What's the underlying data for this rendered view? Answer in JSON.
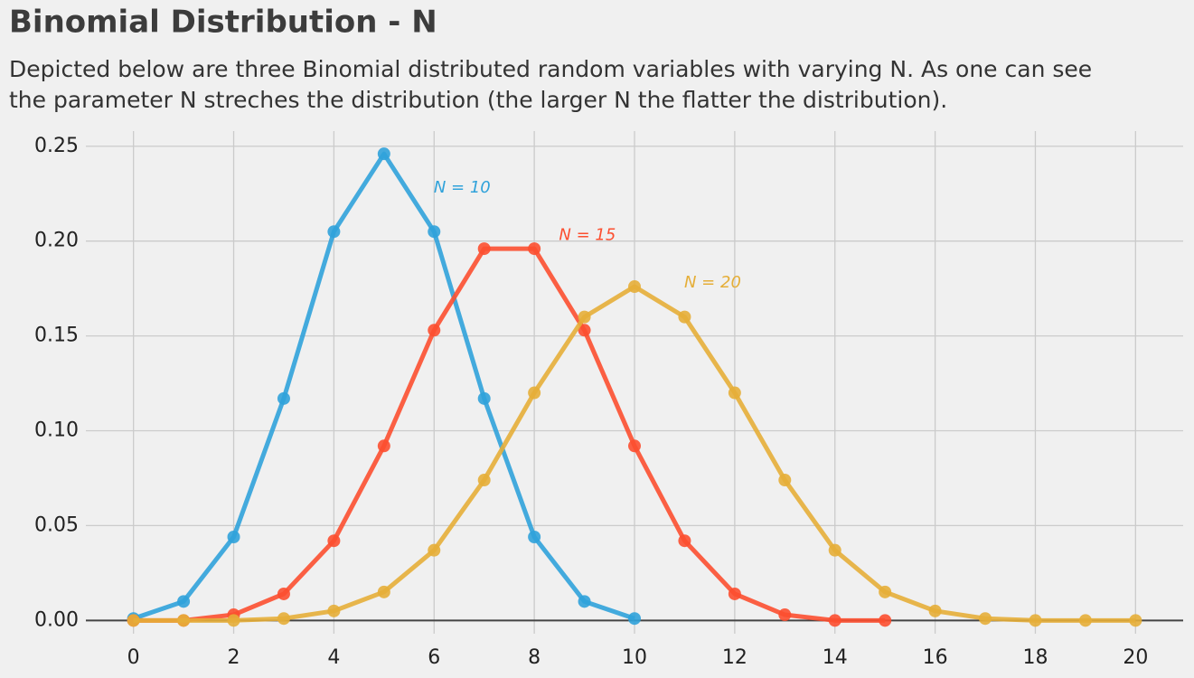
{
  "chart_data": {
    "type": "line",
    "title": "Binomial Distribution - N",
    "subtitle": [
      "Depicted below are three Binomial distributed random variables with varying N. As one can see",
      "the parameter N streches the distribution (the larger N the flatter the distribution)."
    ],
    "series": [
      {
        "name": "N = 10",
        "color": "#30a2da",
        "x": [
          0,
          1,
          2,
          3,
          4,
          5,
          6,
          7,
          8,
          9,
          10
        ],
        "values": [
          0.001,
          0.01,
          0.044,
          0.117,
          0.205,
          0.246,
          0.205,
          0.117,
          0.044,
          0.01,
          0.001
        ]
      },
      {
        "name": "N = 15",
        "color": "#fc4f30",
        "x": [
          0,
          1,
          2,
          3,
          4,
          5,
          6,
          7,
          8,
          9,
          10,
          11,
          12,
          13,
          14,
          15
        ],
        "values": [
          0.0,
          0.0,
          0.003,
          0.014,
          0.042,
          0.092,
          0.153,
          0.196,
          0.196,
          0.153,
          0.092,
          0.042,
          0.014,
          0.003,
          0.0,
          0.0
        ]
      },
      {
        "name": "N = 20",
        "color": "#e5ae38",
        "x": [
          0,
          1,
          2,
          3,
          4,
          5,
          6,
          7,
          8,
          9,
          10,
          11,
          12,
          13,
          14,
          15,
          16,
          17,
          18,
          19,
          20
        ],
        "values": [
          0.0,
          0.0,
          0.0,
          0.001,
          0.005,
          0.015,
          0.037,
          0.074,
          0.12,
          0.16,
          0.176,
          0.16,
          0.12,
          0.074,
          0.037,
          0.015,
          0.005,
          0.001,
          0.0,
          0.0,
          0.0
        ]
      }
    ],
    "xlim": [
      -0.95,
      20.95
    ],
    "ylim": [
      -0.007,
      0.258
    ],
    "xticks": [
      0,
      2,
      4,
      6,
      8,
      10,
      12,
      14,
      16,
      18,
      20
    ],
    "yticks": [
      {
        "value": 0,
        "label": "0.00"
      },
      {
        "value": 0.05,
        "label": "0.05"
      },
      {
        "value": 0.1,
        "label": "0.10"
      },
      {
        "value": 0.15,
        "label": "0.15"
      },
      {
        "value": 0.2,
        "label": "0.20"
      },
      {
        "value": 0.25,
        "label": "0.25"
      }
    ],
    "grid": true
  }
}
